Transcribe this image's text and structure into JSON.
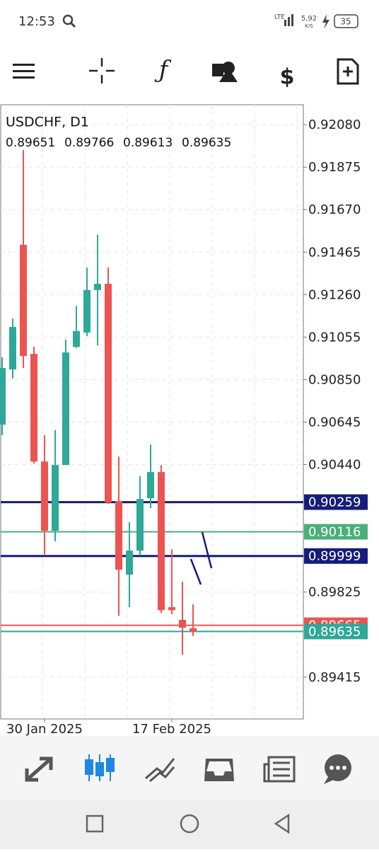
{
  "status_bar": {
    "time": "12:53",
    "network": "LTE",
    "speed": "5,92",
    "speed_unit": "K/S",
    "battery": "35"
  },
  "chart_data": {
    "type": "candlestick",
    "title": "USDCHF, D1",
    "header_values": [
      0.89651,
      0.89766,
      0.89613,
      0.89635
    ],
    "categories": [
      null,
      null,
      null,
      null,
      "30 Jan 2025",
      null,
      null,
      null,
      null,
      null,
      null,
      null,
      null,
      null,
      null,
      null,
      "17 Feb 2025",
      null,
      null
    ],
    "open": [
      0.90633,
      0.90899,
      0.915,
      0.90974,
      0.90455,
      0.90121,
      0.90438,
      0.91008,
      0.91077,
      0.91282,
      0.91312,
      0.90264,
      0.89909,
      0.90025,
      0.90278,
      0.90404,
      0.89752,
      0.89691,
      0.89651
    ],
    "high": [
      0.90957,
      0.91145,
      0.91958,
      0.91008,
      0.90582,
      0.90606,
      0.91043,
      0.91206,
      0.91391,
      0.91548,
      0.91391,
      0.90479,
      0.90162,
      0.90384,
      0.90537,
      0.90438,
      0.90032,
      0.89875,
      0.89766
    ],
    "low": [
      0.90582,
      0.90855,
      0.90906,
      0.90445,
      0.90001,
      0.9007,
      0.90438,
      0.91002,
      0.9106,
      0.91015,
      0.90251,
      0.89711,
      0.89752,
      0.90001,
      0.9023,
      0.89725,
      0.89718,
      0.89523,
      0.89613
    ],
    "close": [
      0.90906,
      0.91104,
      0.90964,
      0.90455,
      0.90121,
      0.90438,
      0.90981,
      0.91084,
      0.91282,
      0.91312,
      0.90257,
      0.89933,
      0.90025,
      0.90274,
      0.90404,
      0.89738,
      0.89738,
      0.89653,
      0.89635
    ],
    "up_color": "#2ea897",
    "down_color": "#ec5452",
    "ylim": [
      0.89213,
      0.92176
    ],
    "yticks": [
      {
        "value": 0.9208,
        "label": "0.92080"
      },
      0.91875,
      {
        "value": 0.9167,
        "label": "0.91670"
      },
      0.91465,
      {
        "value": 0.9126,
        "label": "0.91260"
      },
      0.91055,
      {
        "value": 0.9085,
        "label": "0.90850"
      },
      0.90645,
      {
        "value": 0.9044,
        "label": "0.90440"
      },
      0.89825,
      0.89415
    ],
    "grid": true,
    "levels": [
      {
        "value": 0.89665,
        "color": "#ec5452"
      },
      {
        "value": 0.90259,
        "color": "#161c7a"
      },
      {
        "value": 0.90116,
        "color": "#4caf7a"
      },
      {
        "value": 0.89999,
        "color": "#161c7a"
      },
      {
        "value": 0.89635,
        "color": "#2ea897"
      }
    ]
  }
}
